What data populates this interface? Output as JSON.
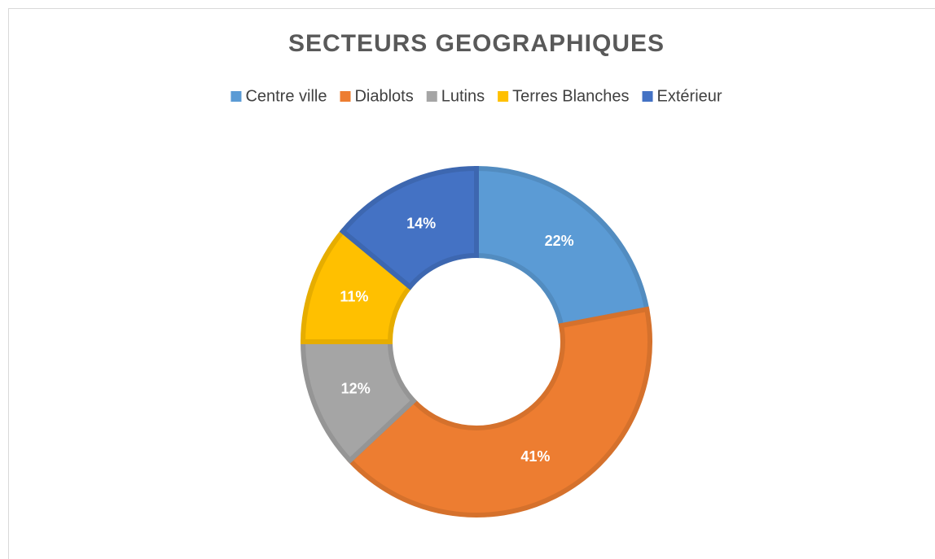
{
  "chart_data": {
    "type": "donut",
    "title": "SECTEURS GEOGRAPHIQUES",
    "categories": [
      "Centre ville",
      "Diablots",
      "Lutins",
      "Terres Blanches",
      "Extérieur"
    ],
    "values": [
      22,
      41,
      12,
      11,
      14
    ],
    "value_labels": [
      "22%",
      "41%",
      "12%",
      "11%",
      "14%"
    ],
    "colors": [
      "#5b9bd5",
      "#ed7d31",
      "#a5a5a5",
      "#ffc000",
      "#4472c4"
    ],
    "legend": "top"
  }
}
